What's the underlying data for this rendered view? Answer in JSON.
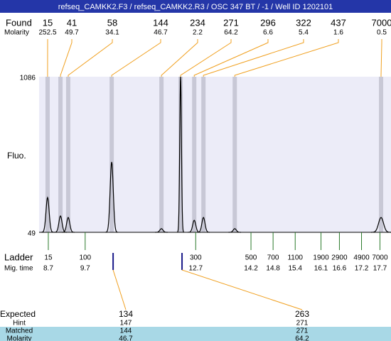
{
  "chart_data": {
    "type": "electropherogram",
    "title": "refseq_CAMKK2.F3 / refseq_CAMKK2.R3 / OSC 347 BT / -1 / Well ID 1202101",
    "ylabel": "Fluo.",
    "ylim": [
      49,
      1086
    ],
    "yticks": [
      49,
      1086
    ],
    "xlim": [
      8.45,
      18.0
    ],
    "found_label": "Found",
    "molarity_label": "Molarity",
    "peaks": {
      "sizes": [
        15,
        41,
        58,
        144,
        234,
        271,
        296,
        322,
        437,
        7000
      ],
      "molarity": [
        252.5,
        49.7,
        34.1,
        46.7,
        2.2,
        64.2,
        6.6,
        5.4,
        1.6,
        0.5
      ],
      "times": [
        8.68,
        9.03,
        9.24,
        10.42,
        11.77,
        12.29,
        12.66,
        12.91,
        13.76,
        17.73
      ],
      "heights": [
        281,
        158,
        148,
        518,
        73,
        1086,
        129,
        148,
        73,
        148
      ]
    },
    "ladder_label": "Ladder",
    "time_label": "Mig. time",
    "ladder": {
      "sizes": [
        15,
        100,
        300,
        500,
        700,
        1100,
        1900,
        2900,
        4900,
        7000
      ],
      "times": [
        8.7,
        9.7,
        12.7,
        14.2,
        14.8,
        15.4,
        16.1,
        16.6,
        17.2,
        17.7
      ]
    },
    "expected_label": "Expected",
    "hint_label": "Hint",
    "matched_label": "Matched",
    "expected_molarity_label": "Molarity",
    "expected": [
      134,
      263
    ],
    "hint": [
      147,
      271
    ],
    "matched": [
      144,
      271
    ],
    "expected_molarity": [
      46.7,
      64.2
    ]
  }
}
